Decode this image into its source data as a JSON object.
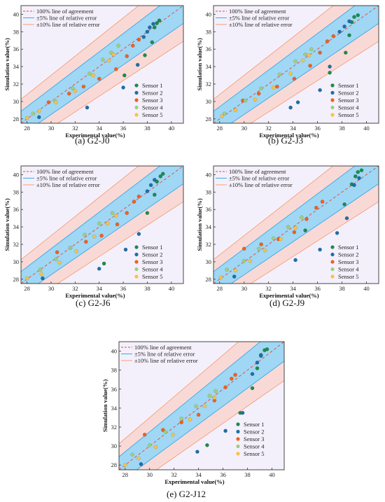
{
  "colors": {
    "band10": "#f9d9d6",
    "band5": "#9fd7f4",
    "plot_bg": "#f4f0fb",
    "line100": "#e8453c",
    "line5": "#3aa9e6",
    "line10": "#f2a07a",
    "sensor1": "#1f8a4c",
    "sensor2": "#1d6faa",
    "sensor3": "#f06020",
    "sensor4": "#9fce7f",
    "sensor5": "#f7c246"
  },
  "legend_lines": [
    "100% line of agreement",
    "±5% line of relative error",
    "±10% line of relative error"
  ],
  "sensors": [
    "Sensor 1",
    "Sensor 2",
    "Sensor 3",
    "Sensor 4",
    "Sensor 5"
  ],
  "chart_data": [
    {
      "type": "scatter",
      "caption": "(a) G2-J0",
      "xlabel": "Experimental value(%)",
      "ylabel": "Simulation value(%)",
      "xlim": [
        27.5,
        41
      ],
      "ylim": [
        27.5,
        41
      ],
      "xticks": [
        28,
        30,
        32,
        34,
        36,
        38,
        40
      ],
      "yticks": [
        28,
        30,
        32,
        34,
        36,
        38,
        40
      ],
      "series": [
        {
          "name": "Sensor 1",
          "points": [
            [
              36.1,
              33.0
            ],
            [
              37.8,
              35.3
            ],
            [
              38.4,
              36.8
            ],
            [
              38.6,
              38.5
            ],
            [
              38.8,
              39.0
            ],
            [
              39.0,
              39.3
            ]
          ]
        },
        {
          "name": "Sensor 2",
          "points": [
            [
              29.0,
              28.2
            ],
            [
              33.0,
              29.3
            ],
            [
              36.0,
              31.6
            ],
            [
              37.2,
              34.2
            ],
            [
              37.7,
              37.4
            ],
            [
              38.0,
              38.0
            ],
            [
              38.2,
              38.5
            ],
            [
              38.5,
              38.9
            ]
          ]
        },
        {
          "name": "Sensor 3",
          "points": [
            [
              29.8,
              29.9
            ],
            [
              31.5,
              30.9
            ],
            [
              32.7,
              31.7
            ],
            [
              34.0,
              32.6
            ],
            [
              35.4,
              33.7
            ],
            [
              36.3,
              35.2
            ],
            [
              36.8,
              36.4
            ],
            [
              37.3,
              37.1
            ]
          ]
        },
        {
          "name": "Sensor 4",
          "points": [
            [
              28.5,
              28.6
            ],
            [
              30.3,
              30.1
            ],
            [
              31.8,
              31.5
            ],
            [
              33.2,
              33.2
            ],
            [
              34.3,
              34.8
            ],
            [
              35.0,
              35.6
            ],
            [
              35.6,
              36.4
            ]
          ]
        },
        {
          "name": "Sensor 5",
          "points": [
            [
              28.0,
              28.1
            ],
            [
              29.0,
              28.9
            ],
            [
              30.4,
              29.9
            ],
            [
              32.0,
              31.2
            ],
            [
              33.5,
              33.0
            ],
            [
              34.8,
              34.7
            ],
            [
              35.2,
              35.4
            ]
          ]
        }
      ]
    },
    {
      "type": "scatter",
      "caption": "(b) G2-J3",
      "xlabel": "Experimental value(%)",
      "ylabel": "Simulation value(%)",
      "xlim": [
        27.5,
        41
      ],
      "ylim": [
        27.5,
        41
      ],
      "xticks": [
        28,
        30,
        32,
        34,
        36,
        38,
        40
      ],
      "yticks": [
        28,
        30,
        32,
        34,
        36,
        38,
        40
      ],
      "series": [
        {
          "name": "Sensor 1",
          "points": [
            [
              37.0,
              33.3
            ],
            [
              38.3,
              35.6
            ],
            [
              38.6,
              37.6
            ],
            [
              38.8,
              39.1
            ],
            [
              39.0,
              39.7
            ],
            [
              39.3,
              39.9
            ]
          ]
        },
        {
          "name": "Sensor 2",
          "points": [
            [
              33.8,
              29.3
            ],
            [
              34.4,
              29.9
            ],
            [
              36.2,
              31.3
            ],
            [
              37.0,
              34.0
            ],
            [
              37.8,
              38.0
            ],
            [
              38.2,
              38.6
            ],
            [
              38.6,
              39.2
            ]
          ]
        },
        {
          "name": "Sensor 3",
          "points": [
            [
              29.9,
              30.1
            ],
            [
              31.2,
              30.9
            ],
            [
              32.7,
              31.7
            ],
            [
              34.1,
              32.6
            ],
            [
              35.4,
              34.1
            ],
            [
              36.2,
              35.6
            ],
            [
              36.8,
              36.9
            ],
            [
              37.3,
              37.5
            ]
          ]
        },
        {
          "name": "Sensor 4",
          "points": [
            [
              28.4,
              28.6
            ],
            [
              30.1,
              30.1
            ],
            [
              31.4,
              31.5
            ],
            [
              32.9,
              33.1
            ],
            [
              34.2,
              34.6
            ],
            [
              35.0,
              35.4
            ],
            [
              35.5,
              36.0
            ]
          ]
        },
        {
          "name": "Sensor 5",
          "points": [
            [
              28.2,
              28.3
            ],
            [
              29.3,
              29.0
            ],
            [
              30.9,
              30.2
            ],
            [
              32.4,
              31.6
            ],
            [
              33.8,
              33.2
            ],
            [
              34.8,
              34.7
            ],
            [
              35.3,
              35.3
            ]
          ]
        }
      ]
    },
    {
      "type": "scatter",
      "caption": "(c) G2-J6",
      "xlabel": "Experimental value(%)",
      "ylabel": "Simulation value(%)",
      "xlim": [
        27.5,
        41
      ],
      "ylim": [
        27.5,
        41
      ],
      "xticks": [
        28,
        30,
        32,
        34,
        36,
        38,
        40
      ],
      "yticks": [
        28,
        30,
        32,
        34,
        36,
        38,
        40
      ],
      "series": [
        {
          "name": "Sensor 1",
          "points": [
            [
              34.4,
              29.8
            ],
            [
              38.0,
              35.6
            ],
            [
              38.6,
              37.7
            ],
            [
              38.8,
              39.2
            ],
            [
              39.1,
              39.8
            ],
            [
              39.3,
              40.1
            ]
          ]
        },
        {
          "name": "Sensor 2",
          "points": [
            [
              29.3,
              28.1
            ],
            [
              34.0,
              29.2
            ],
            [
              36.2,
              31.4
            ],
            [
              37.3,
              33.2
            ],
            [
              38.0,
              38.1
            ],
            [
              38.3,
              38.8
            ],
            [
              38.6,
              39.4
            ]
          ]
        },
        {
          "name": "Sensor 3",
          "points": [
            [
              30.5,
              31.1
            ],
            [
              31.6,
              31.6
            ],
            [
              32.9,
              32.3
            ],
            [
              34.2,
              33.0
            ],
            [
              35.5,
              34.3
            ],
            [
              36.3,
              35.6
            ],
            [
              36.9,
              36.9
            ],
            [
              37.3,
              37.5
            ]
          ]
        },
        {
          "name": "Sensor 4",
          "points": [
            [
              29.1,
              29.1
            ],
            [
              30.4,
              30.3
            ],
            [
              31.6,
              31.6
            ],
            [
              32.8,
              33.1
            ],
            [
              34.0,
              34.4
            ],
            [
              35.1,
              35.6
            ]
          ]
        },
        {
          "name": "Sensor 5",
          "points": [
            [
              28.0,
              28.1
            ],
            [
              29.2,
              28.6
            ],
            [
              30.7,
              29.9
            ],
            [
              32.1,
              31.2
            ],
            [
              33.6,
              32.9
            ],
            [
              34.7,
              34.4
            ],
            [
              35.4,
              35.3
            ]
          ]
        }
      ]
    },
    {
      "type": "scatter",
      "caption": "(d) G2-J9",
      "xlabel": "Experimental value(%)",
      "ylabel": "Simulation value(%)",
      "xlim": [
        27.5,
        41
      ],
      "ylim": [
        27.5,
        41
      ],
      "xticks": [
        28,
        30,
        32,
        34,
        36,
        38,
        40
      ],
      "yticks": [
        28,
        30,
        32,
        34,
        36,
        38,
        40
      ],
      "series": [
        {
          "name": "Sensor 1",
          "points": [
            [
              35.0,
              33.6
            ],
            [
              38.2,
              36.6
            ],
            [
              38.8,
              38.9
            ],
            [
              39.1,
              39.8
            ],
            [
              39.3,
              40.3
            ],
            [
              39.6,
              40.5
            ]
          ]
        },
        {
          "name": "Sensor 2",
          "points": [
            [
              29.2,
              28.3
            ],
            [
              34.2,
              30.2
            ],
            [
              36.2,
              31.4
            ],
            [
              37.6,
              33.3
            ],
            [
              38.4,
              35.0
            ],
            [
              39.0,
              38.8
            ],
            [
              39.4,
              39.6
            ]
          ]
        },
        {
          "name": "Sensor 3",
          "points": [
            [
              30.0,
              31.5
            ],
            [
              31.4,
              32.0
            ],
            [
              32.8,
              32.6
            ],
            [
              34.1,
              33.4
            ],
            [
              35.1,
              34.9
            ],
            [
              35.9,
              36.2
            ],
            [
              36.4,
              36.9
            ]
          ]
        },
        {
          "name": "Sensor 4",
          "points": [
            [
              28.6,
              29.1
            ],
            [
              30.0,
              30.1
            ],
            [
              31.2,
              31.5
            ],
            [
              32.4,
              32.7
            ],
            [
              33.6,
              34.0
            ],
            [
              34.7,
              35.1
            ]
          ]
        },
        {
          "name": "Sensor 5",
          "points": [
            [
              28.1,
              28.2
            ],
            [
              29.3,
              29.0
            ],
            [
              30.5,
              30.1
            ],
            [
              31.7,
              31.3
            ],
            [
              33.0,
              32.6
            ],
            [
              34.2,
              33.9
            ]
          ]
        }
      ]
    },
    {
      "type": "scatter",
      "caption": "(e) G2-J12",
      "xlabel": "Experimental value(%)",
      "ylabel": "Simulation value(%)",
      "xlim": [
        27.5,
        41
      ],
      "ylim": [
        27.5,
        41
      ],
      "xticks": [
        28,
        30,
        32,
        34,
        36,
        38,
        40
      ],
      "yticks": [
        28,
        30,
        32,
        34,
        36,
        38,
        40
      ],
      "series": [
        {
          "name": "Sensor 1",
          "points": [
            [
              34.7,
              30.1
            ],
            [
              37.4,
              33.5
            ],
            [
              38.4,
              36.1
            ],
            [
              38.8,
              38.2
            ],
            [
              39.1,
              39.6
            ],
            [
              39.4,
              40.1
            ],
            [
              39.6,
              40.2
            ]
          ]
        },
        {
          "name": "Sensor 2",
          "points": [
            [
              29.3,
              28.1
            ],
            [
              33.9,
              29.4
            ],
            [
              36.2,
              31.6
            ],
            [
              37.6,
              33.5
            ],
            [
              38.4,
              37.6
            ],
            [
              38.8,
              38.8
            ],
            [
              39.1,
              39.5
            ]
          ]
        },
        {
          "name": "Sensor 3",
          "points": [
            [
              29.6,
              31.2
            ],
            [
              31.1,
              31.7
            ],
            [
              32.6,
              32.5
            ],
            [
              34.0,
              33.3
            ],
            [
              35.3,
              34.8
            ],
            [
              36.2,
              36.2
            ],
            [
              36.7,
              37.1
            ],
            [
              37.0,
              37.5
            ]
          ]
        },
        {
          "name": "Sensor 4",
          "points": [
            [
              28.6,
              29.1
            ],
            [
              30.0,
              30.1
            ],
            [
              31.3,
              31.5
            ],
            [
              32.6,
              32.9
            ],
            [
              33.8,
              34.2
            ],
            [
              34.9,
              35.3
            ],
            [
              35.4,
              35.8
            ]
          ]
        },
        {
          "name": "Sensor 5",
          "points": [
            [
              28.0,
              28.0
            ],
            [
              29.1,
              28.7
            ],
            [
              30.5,
              29.9
            ],
            [
              31.9,
              31.2
            ],
            [
              33.3,
              32.8
            ],
            [
              34.5,
              34.2
            ],
            [
              35.3,
              35.1
            ]
          ]
        }
      ]
    }
  ]
}
